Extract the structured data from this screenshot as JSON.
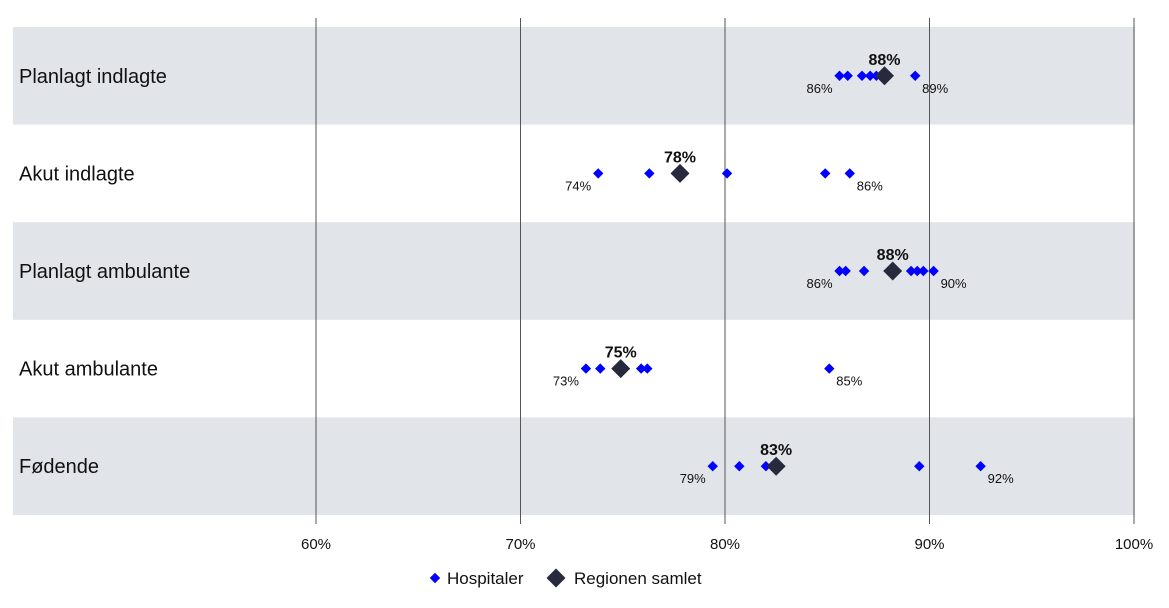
{
  "chart_data": {
    "type": "scatter",
    "orientation": "horizontal",
    "xlim": [
      45,
      100
    ],
    "x_ticks": [
      {
        "value": 60,
        "label": "60%"
      },
      {
        "value": 70,
        "label": "70%"
      },
      {
        "value": 80,
        "label": "80%"
      },
      {
        "value": 90,
        "label": "90%"
      },
      {
        "value": 100,
        "label": "100%"
      }
    ],
    "grid": true,
    "legend_position": "bottom-center",
    "colors": {
      "hospital": "#0000ff",
      "region": "#262a3c",
      "band": "#e1e4e8",
      "gridline": "#555555"
    },
    "categories": [
      {
        "label": "Planlagt indlagte",
        "hospitals": [
          85.6,
          86.0,
          86.7,
          87.1,
          87.4,
          89.3
        ],
        "region": 87.8,
        "region_label": "88%",
        "min_label": "86%",
        "max_label": "89%"
      },
      {
        "label": "Akut indlagte",
        "hospitals": [
          73.8,
          76.3,
          80.1,
          84.9,
          86.1
        ],
        "region": 77.8,
        "region_label": "78%",
        "min_label": "74%",
        "max_label": "86%"
      },
      {
        "label": "Planlagt ambulante",
        "hospitals": [
          85.6,
          85.9,
          86.8,
          89.1,
          89.4,
          89.7,
          90.2
        ],
        "region": 88.2,
        "region_label": "88%",
        "min_label": "86%",
        "max_label": "90%"
      },
      {
        "label": "Akut ambulante",
        "hospitals": [
          73.2,
          73.9,
          75.9,
          76.2,
          85.1
        ],
        "region": 74.9,
        "region_label": "75%",
        "min_label": "73%",
        "max_label": "85%"
      },
      {
        "label": "Fødende",
        "hospitals": [
          79.4,
          80.7,
          82.0,
          89.5,
          92.5
        ],
        "region": 82.5,
        "region_label": "83%",
        "min_label": "79%",
        "max_label": "92%"
      }
    ],
    "legend": [
      {
        "key": "hospital",
        "label": "Hospitaler"
      },
      {
        "key": "region",
        "label": "Regionen samlet"
      }
    ]
  }
}
